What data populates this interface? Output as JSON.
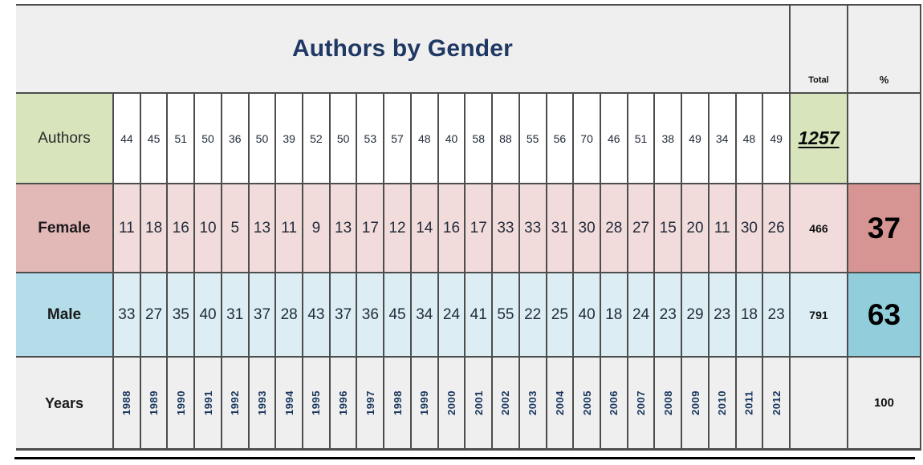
{
  "chart_data": {
    "type": "table",
    "title": "Authors by Gender",
    "columns": [
      "1988",
      "1989",
      "1990",
      "1991",
      "1992",
      "1993",
      "1994",
      "1995",
      "1996",
      "1997",
      "1998",
      "1999",
      "2000",
      "2001",
      "2002",
      "2003",
      "2004",
      "2005",
      "2006",
      "2007",
      "2008",
      "2009",
      "2010",
      "2011",
      "2012"
    ],
    "header": {
      "total_label": "Total",
      "percent_label": "%"
    },
    "series": [
      {
        "name": "Authors",
        "values": [
          44,
          45,
          51,
          50,
          36,
          50,
          39,
          52,
          50,
          53,
          57,
          48,
          40,
          58,
          88,
          55,
          56,
          70,
          46,
          51,
          38,
          49,
          34,
          48,
          49
        ],
        "total": "1257",
        "percent": ""
      },
      {
        "name": "Female",
        "values": [
          11,
          18,
          16,
          10,
          5,
          13,
          11,
          9,
          13,
          17,
          12,
          14,
          16,
          17,
          33,
          33,
          31,
          30,
          28,
          27,
          15,
          20,
          11,
          30,
          26
        ],
        "total": "466",
        "percent": "37"
      },
      {
        "name": "Male",
        "values": [
          33,
          27,
          35,
          40,
          31,
          37,
          28,
          43,
          37,
          36,
          45,
          34,
          24,
          41,
          55,
          22,
          25,
          40,
          18,
          24,
          23,
          29,
          23,
          18,
          23
        ],
        "total": "791",
        "percent": "63"
      }
    ],
    "footer_row": {
      "name": "Years",
      "total": "",
      "percent": "100"
    }
  },
  "colors": {
    "title_text": "#1f3864",
    "header_bg": "#f0efef",
    "grid_border": "#4d4d4d",
    "authors_accent": "#d7e4bc",
    "female_accent": "#e3b9b8",
    "female_light": "#f2dcdb",
    "female_dark": "#d69593",
    "male_accent": "#b4dde9",
    "male_light": "#dceef3",
    "male_dark": "#92cddc"
  }
}
